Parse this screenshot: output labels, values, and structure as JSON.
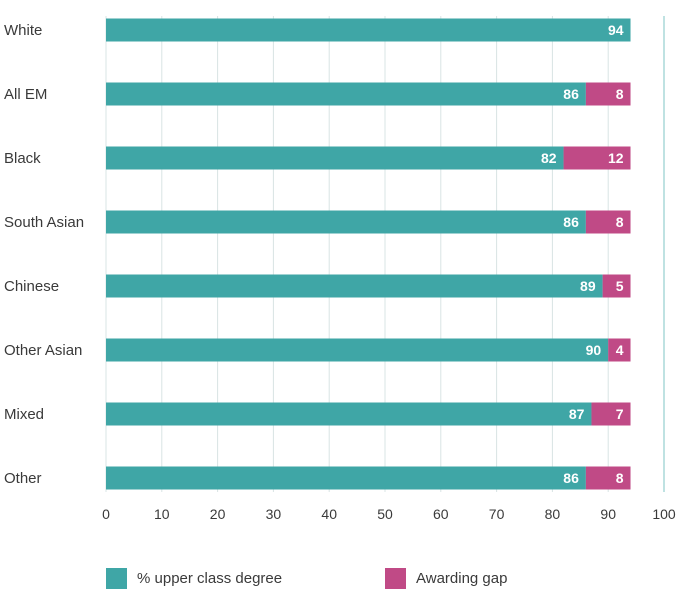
{
  "chart_data": {
    "type": "bar",
    "orientation": "horizontal",
    "stacked": true,
    "categories": [
      "White",
      "All EM",
      "Black",
      "South Asian",
      "Chinese",
      "Other Asian",
      "Mixed",
      "Other"
    ],
    "series": [
      {
        "name": "% upper class degree",
        "color": "#3fa6a6",
        "values": [
          94,
          86,
          82,
          86,
          89,
          90,
          87,
          86
        ]
      },
      {
        "name": "Awarding gap",
        "color": "#c04a86",
        "values": [
          null,
          8,
          12,
          8,
          5,
          4,
          7,
          8
        ]
      }
    ],
    "xlim": [
      0,
      100
    ],
    "xticks": [
      0,
      10,
      20,
      30,
      40,
      50,
      60,
      70,
      80,
      90,
      100
    ],
    "grid": "vertical",
    "legend": "bottom"
  }
}
